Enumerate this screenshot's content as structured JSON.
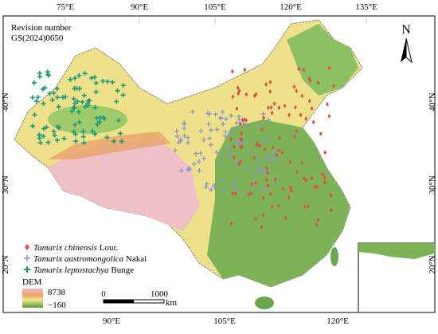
{
  "map": {
    "top_labels": [
      "75°E",
      "90°E",
      "105°E",
      "120°E",
      "135°E"
    ],
    "bottom_labels": [
      "90°E",
      "105°E",
      "120°E"
    ],
    "left_labels": [
      "40°N",
      "30°N",
      "20°N"
    ],
    "right_labels": [
      "40°N",
      "30°N"
    ],
    "inset_label": "20°N",
    "revision": {
      "title": "Revision number",
      "code": "GS(2024)0650"
    },
    "north": "N",
    "legend": [
      {
        "species": "Tamarix chinensis",
        "author": "Lour."
      },
      {
        "species": "Tamarix austromongolica",
        "author": "Nakai"
      },
      {
        "species": "Tamarix leptostachya",
        "author": "Bunge"
      }
    ],
    "dem": {
      "title": "DEM",
      "max": "8738",
      "min": "−160"
    },
    "scale": {
      "start": "0",
      "end": "1000",
      "unit": "km"
    }
  }
}
